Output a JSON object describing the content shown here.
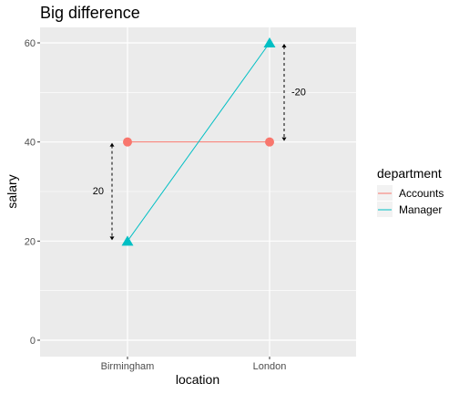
{
  "chart_data": {
    "type": "line",
    "title": "Big difference",
    "xlabel": "location",
    "ylabel": "salary",
    "categories": [
      "Birmingham",
      "London"
    ],
    "ylim": [
      0,
      60
    ],
    "yticks": [
      0,
      20,
      40,
      60
    ],
    "grid": true,
    "legend": {
      "title": "department",
      "placement": "right"
    },
    "series": [
      {
        "name": "Accounts",
        "values": [
          40,
          40
        ],
        "color": "#F8766D",
        "marker": "circle"
      },
      {
        "name": "Manager",
        "values": [
          20,
          60
        ],
        "color": "#00BFC4",
        "marker": "triangle"
      }
    ],
    "annotations": [
      {
        "text": "20",
        "category": "Birmingham",
        "from": 20,
        "to": 40
      },
      {
        "text": "-20",
        "category": "London",
        "from": 60,
        "to": 40
      }
    ],
    "colors": {
      "panel": "#EBEBEB",
      "grid": "#FFFFFF"
    }
  }
}
